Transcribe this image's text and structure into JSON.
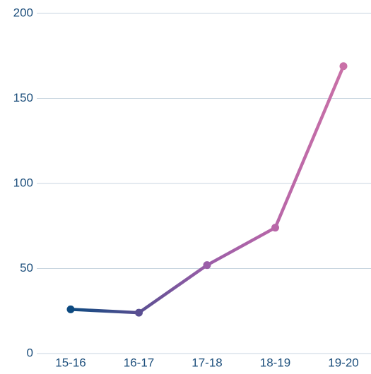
{
  "chart_data": {
    "type": "line",
    "categories": [
      "15-16",
      "16-17",
      "17-18",
      "18-19",
      "19-20"
    ],
    "series": [
      {
        "values": [
          26,
          24,
          52,
          74,
          169
        ],
        "colors": [
          "#0d4a80",
          "#5a4f92",
          "#9b5ea8",
          "#b867a8",
          "#c970a7"
        ]
      }
    ],
    "ylim": [
      0,
      200
    ],
    "yticks": [
      0,
      50,
      100,
      150,
      200
    ],
    "grid": true
  }
}
